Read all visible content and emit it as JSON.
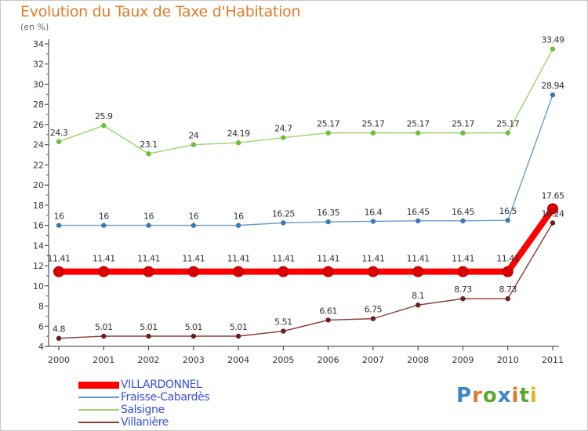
{
  "header": {
    "title": "Evolution du Taux de Taxe d'Habitation",
    "subtitle": "(en %)"
  },
  "logo": {
    "text": "Proxiti",
    "letter_colors": [
      "#3a86c8",
      "#e07b2a",
      "#5aa832",
      "#3a86c8",
      "#e07b2a",
      "#5aa832",
      "#e0b32a"
    ]
  },
  "chart_data": {
    "type": "line",
    "title": "Evolution du Taux de Taxe d'Habitation",
    "ylabel": "(en %)",
    "xlabel": "",
    "x": [
      "2000",
      "2001",
      "2002",
      "2003",
      "2004",
      "2005",
      "2006",
      "2007",
      "2008",
      "2009",
      "2010",
      "2011"
    ],
    "ylim": [
      4,
      34
    ],
    "yticks": [
      4,
      6,
      8,
      10,
      12,
      14,
      16,
      18,
      20,
      22,
      24,
      26,
      28,
      30,
      32,
      34
    ],
    "grid": false,
    "legend_position": "bottom-left",
    "series": [
      {
        "name": "VILLARDONNEL",
        "color": "#ff0000",
        "marker_color": "#dd0000",
        "emphasis": true,
        "values": [
          11.41,
          11.41,
          11.41,
          11.41,
          11.41,
          11.41,
          11.41,
          11.41,
          11.41,
          11.41,
          11.41,
          17.65
        ],
        "labels": [
          "11.41",
          "11.41",
          "11.41",
          "11.41",
          "11.41",
          "11.41",
          "11.41",
          "11.41",
          "11.41",
          "11.41",
          "11.41",
          "17.65"
        ]
      },
      {
        "name": "Fraisse-Cabardès",
        "color": "#6b9ac8",
        "marker_color": "#3a78b8",
        "emphasis": false,
        "values": [
          16,
          16,
          16,
          16,
          16,
          16.25,
          16.35,
          16.4,
          16.45,
          16.45,
          16.5,
          28.94
        ],
        "labels": [
          "16",
          "16",
          "16",
          "16",
          "16",
          "16.25",
          "16.35",
          "16.4",
          "16.45",
          "16.45",
          "16.5",
          "28.94"
        ]
      },
      {
        "name": "Salsigne",
        "color": "#9bd46e",
        "marker_color": "#6cbf3a",
        "emphasis": false,
        "values": [
          24.3,
          25.9,
          23.1,
          24,
          24.19,
          24.7,
          25.17,
          25.17,
          25.17,
          25.17,
          25.17,
          33.49
        ],
        "labels": [
          "24.3",
          "25.9",
          "23.1",
          "24",
          "24.19",
          "24.7",
          "25.17",
          "25.17",
          "25.17",
          "25.17",
          "25.17",
          "33.49"
        ]
      },
      {
        "name": "Villanière",
        "color": "#8b3a3a",
        "marker_color": "#6e1e1e",
        "emphasis": false,
        "values": [
          4.8,
          5.01,
          5.01,
          5.01,
          5.01,
          5.51,
          6.61,
          6.75,
          8.1,
          8.73,
          8.73,
          16.24
        ],
        "labels": [
          "4.8",
          "5.01",
          "5.01",
          "5.01",
          "5.01",
          "5.51",
          "6.61",
          "6.75",
          "8.1",
          "8.73",
          "8.73",
          "16.24"
        ]
      }
    ]
  }
}
